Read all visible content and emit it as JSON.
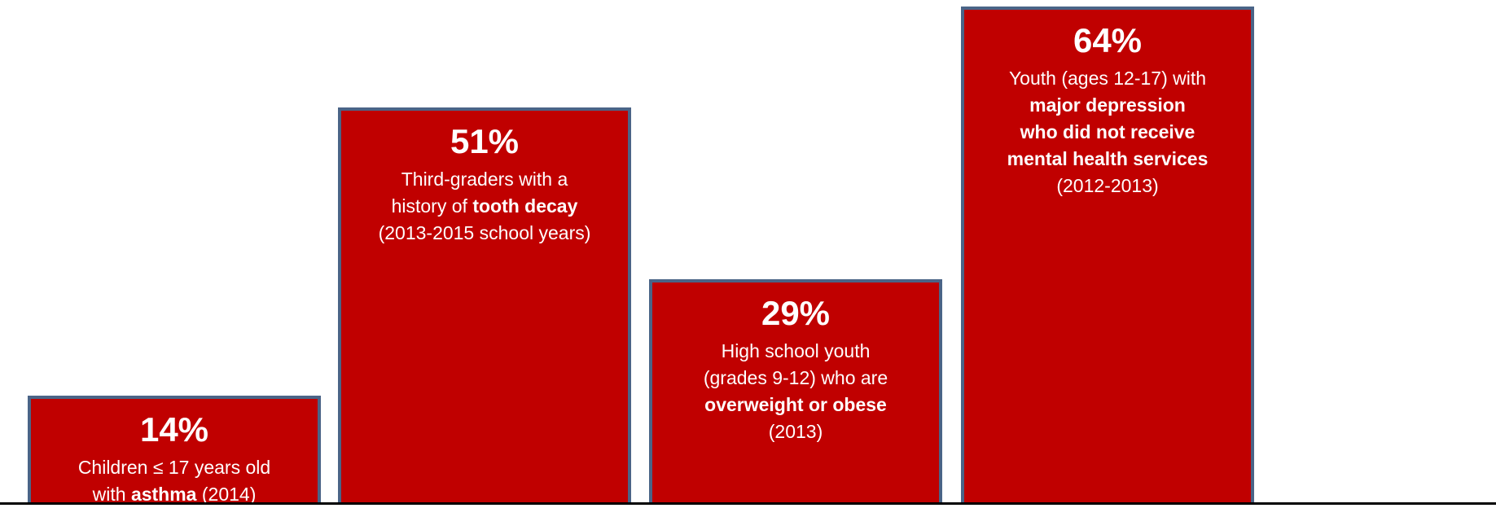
{
  "colors": {
    "bar_fill": "#c00000",
    "bar_border": "#4a6487",
    "text": "#ffffff",
    "baseline": "#000000"
  },
  "chart_data": {
    "type": "bar",
    "title": "",
    "xlabel": "",
    "ylabel": "",
    "ylim": [
      0,
      64
    ],
    "bars": [
      {
        "value": 14,
        "value_label": "14%",
        "lines": [
          [
            {
              "text": "Children ≤ 17 years old",
              "bold": false
            }
          ],
          [
            {
              "text": "with ",
              "bold": false
            },
            {
              "text": "asthma",
              "bold": true
            },
            {
              "text": " (2014)",
              "bold": false
            }
          ]
        ]
      },
      {
        "value": 51,
        "value_label": "51%",
        "lines": [
          [
            {
              "text": "Third-graders with a",
              "bold": false
            }
          ],
          [
            {
              "text": "history of ",
              "bold": false
            },
            {
              "text": "tooth decay",
              "bold": true
            }
          ],
          [
            {
              "text": "(2013-2015 school years)",
              "bold": false
            }
          ]
        ]
      },
      {
        "value": 29,
        "value_label": "29%",
        "lines": [
          [
            {
              "text": "High school youth",
              "bold": false
            }
          ],
          [
            {
              "text": "(grades 9-12) who are",
              "bold": false
            }
          ],
          [
            {
              "text": "overweight or obese",
              "bold": true
            }
          ],
          [
            {
              "text": "(2013)",
              "bold": false
            }
          ]
        ]
      },
      {
        "value": 64,
        "value_label": "64%",
        "lines": [
          [
            {
              "text": "Youth (ages 12-17) with",
              "bold": false
            }
          ],
          [
            {
              "text": "major depression",
              "bold": true
            }
          ],
          [
            {
              "text": "who did not receive",
              "bold": true
            }
          ],
          [
            {
              "text": "mental health services",
              "bold": true
            }
          ],
          [
            {
              "text": "(2012-2013)",
              "bold": false
            }
          ]
        ]
      }
    ]
  }
}
